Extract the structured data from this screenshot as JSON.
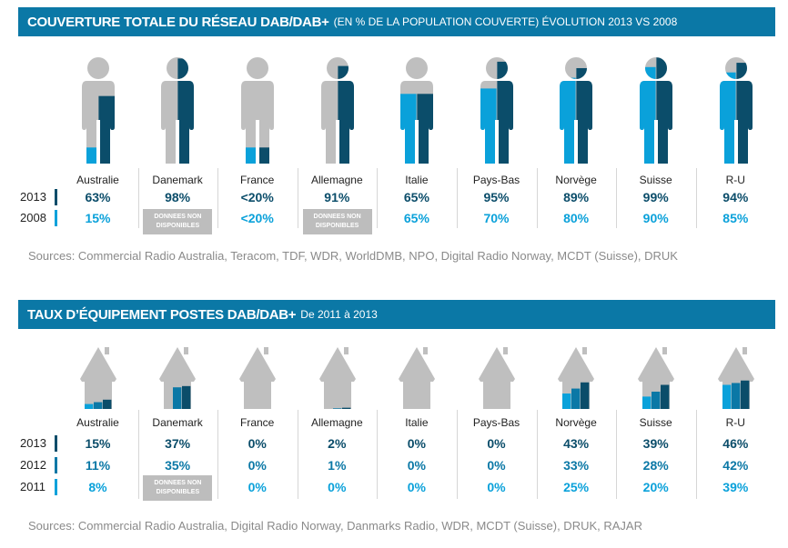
{
  "colors": {
    "banner": "#0b78a6",
    "dark": "#0b4d6a",
    "mid": "#0b78a6",
    "light": "#0aa1da",
    "gray": "#bfbfbf"
  },
  "coverage": {
    "title": "COUVERTURE TOTALE DU RÉSEAU DAB/DAB+",
    "subtitle": "(EN % DE LA POPULATION COUVERTE) ÉVOLUTION 2013 VS 2008",
    "years": [
      "2013",
      "2008"
    ],
    "na_label": "DONNEES NON DISPONIBLES",
    "sources": "Sources: Commercial Radio Australia, Teracom, TDF, WDR, WorldDMB, NPO, Digital Radio Norway, MCDT (Suisse), DRUK",
    "countries": [
      {
        "name": "Australie",
        "v2013": "63%",
        "v2008": "15%",
        "fill2013": 63,
        "fill2008": 15
      },
      {
        "name": "Danemark",
        "v2013": "98%",
        "v2008": null,
        "fill2013": 98,
        "fill2008": 0
      },
      {
        "name": "France",
        "v2013": "<20%",
        "v2008": "<20%",
        "fill2013": 15,
        "fill2008": 15
      },
      {
        "name": "Allemagne",
        "v2013": "91%",
        "v2008": null,
        "fill2013": 91,
        "fill2008": 0
      },
      {
        "name": "Italie",
        "v2013": "65%",
        "v2008": "65%",
        "fill2013": 65,
        "fill2008": 65
      },
      {
        "name": "Pays-Bas",
        "v2013": "95%",
        "v2008": "70%",
        "fill2013": 95,
        "fill2008": 70
      },
      {
        "name": "Norvège",
        "v2013": "89%",
        "v2008": "80%",
        "fill2013": 89,
        "fill2008": 80
      },
      {
        "name": "Suisse",
        "v2013": "99%",
        "v2008": "90%",
        "fill2013": 99,
        "fill2008": 90
      },
      {
        "name": "R-U",
        "v2013": "94%",
        "v2008": "85%",
        "fill2013": 94,
        "fill2008": 85
      }
    ]
  },
  "equipment": {
    "title": "TAUX D’ÉQUIPEMENT POSTES DAB/DAB+",
    "subtitle": "De 2011 à 2013",
    "years": [
      "2013",
      "2012",
      "2011"
    ],
    "na_label": "DONNEES NON DISPONIBLES",
    "sources": "Sources: Commercial Radio Australia, Digital Radio Norway, Danmarks Radio, WDR, MCDT (Suisse), DRUK, RAJAR",
    "countries": [
      {
        "name": "Australie",
        "v2013": "15%",
        "v2012": "11%",
        "v2011": "8%",
        "n": [
          15,
          11,
          8
        ]
      },
      {
        "name": "Danemark",
        "v2013": "37%",
        "v2012": "35%",
        "v2011": null,
        "n": [
          37,
          35,
          null
        ]
      },
      {
        "name": "France",
        "v2013": "0%",
        "v2012": "0%",
        "v2011": "0%",
        "n": [
          0,
          0,
          0
        ]
      },
      {
        "name": "Allemagne",
        "v2013": "2%",
        "v2012": "1%",
        "v2011": "0%",
        "n": [
          2,
          1,
          0
        ]
      },
      {
        "name": "Italie",
        "v2013": "0%",
        "v2012": "0%",
        "v2011": "0%",
        "n": [
          0,
          0,
          0
        ]
      },
      {
        "name": "Pays-Bas",
        "v2013": "0%",
        "v2012": "0%",
        "v2011": "0%",
        "n": [
          0,
          0,
          0
        ]
      },
      {
        "name": "Norvège",
        "v2013": "43%",
        "v2012": "33%",
        "v2011": "25%",
        "n": [
          43,
          33,
          25
        ]
      },
      {
        "name": "Suisse",
        "v2013": "39%",
        "v2012": "28%",
        "v2011": "20%",
        "n": [
          39,
          28,
          20
        ]
      },
      {
        "name": "R-U",
        "v2013": "46%",
        "v2012": "42%",
        "v2011": "39%",
        "n": [
          46,
          42,
          39
        ]
      }
    ]
  },
  "chart_data": [
    {
      "type": "pictogram",
      "title": "COUVERTURE TOTALE DU RÉSEAU DAB/DAB+",
      "categories": [
        "Australie",
        "Danemark",
        "France",
        "Allemagne",
        "Italie",
        "Pays-Bas",
        "Norvège",
        "Suisse",
        "R-U"
      ],
      "series": [
        {
          "name": "2013",
          "values": [
            "63%",
            "98%",
            "<20%",
            "91%",
            "65%",
            "95%",
            "89%",
            "99%",
            "94%"
          ]
        },
        {
          "name": "2008",
          "values": [
            "15%",
            null,
            "<20%",
            null,
            "65%",
            "70%",
            "80%",
            "90%",
            "85%"
          ]
        }
      ]
    },
    {
      "type": "bar",
      "title": "TAUX D’ÉQUIPEMENT POSTES DAB/DAB+",
      "categories": [
        "Australie",
        "Danemark",
        "France",
        "Allemagne",
        "Italie",
        "Pays-Bas",
        "Norvège",
        "Suisse",
        "R-U"
      ],
      "series": [
        {
          "name": "2013",
          "values": [
            15,
            37,
            0,
            2,
            0,
            0,
            43,
            39,
            46
          ]
        },
        {
          "name": "2012",
          "values": [
            11,
            35,
            0,
            1,
            0,
            0,
            33,
            28,
            42
          ]
        },
        {
          "name": "2011",
          "values": [
            8,
            null,
            0,
            0,
            0,
            0,
            25,
            20,
            39
          ]
        }
      ]
    }
  ]
}
